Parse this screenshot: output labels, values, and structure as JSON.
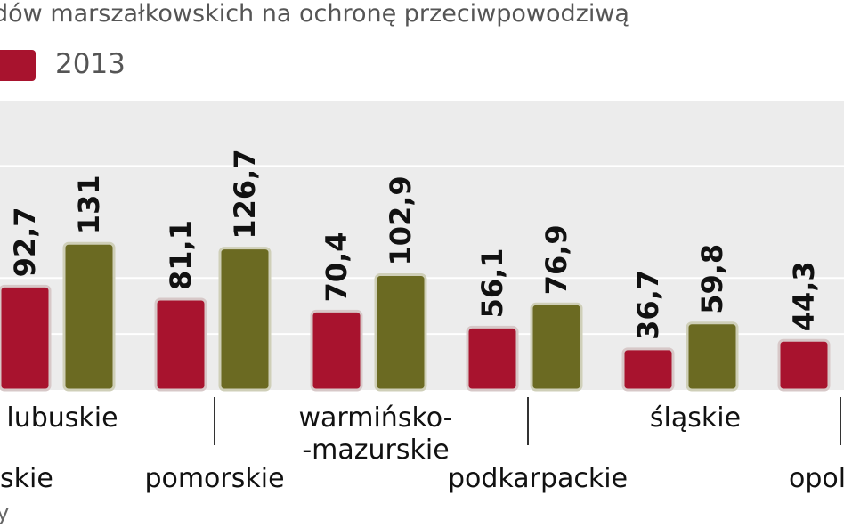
{
  "colors": {
    "series_2012": "#a8132e",
    "series_2013": "#6b6a22",
    "plot_bg": "#ececec",
    "grid": "#ffffff"
  },
  "title": "dów marszałkowskich na ochronę przeciwpowodziwą",
  "legend": {
    "label": "2013",
    "color": "#a8132e"
  },
  "footnote": "y",
  "chart_data": {
    "type": "bar",
    "title": "dów marszałkowskich na ochronę przeciwpowodziwą",
    "xlabel": "",
    "ylabel": "",
    "categories": [
      "lubuskie",
      "pomorskie",
      "warmińsko-\n-mazurskie",
      "podkarpackie",
      "śląskie",
      "opolskie"
    ],
    "series": [
      {
        "name": "",
        "color": "#a8132e",
        "values": [
          92.7,
          81.1,
          70.4,
          56.1,
          36.7,
          44.3
        ]
      },
      {
        "name": "",
        "color": "#6b6a22",
        "values": [
          131,
          126.7,
          102.9,
          76.9,
          59.8,
          null
        ]
      }
    ],
    "value_labels": [
      [
        "92,7",
        "81,1",
        "70,4",
        "56,1",
        "36,7",
        "44,3"
      ],
      [
        "131",
        "126,7",
        "102,9",
        "76,9",
        "59,8",
        ""
      ]
    ],
    "visible_category_labels": [
      "lubuskie",
      "warmińsko-",
      "-mazurskie",
      "śląskie",
      "skie",
      "pomorskie",
      "podkarpackie",
      "opol"
    ],
    "ylim": [
      0,
      170
    ],
    "grid": true,
    "legend_position": "top-left"
  }
}
